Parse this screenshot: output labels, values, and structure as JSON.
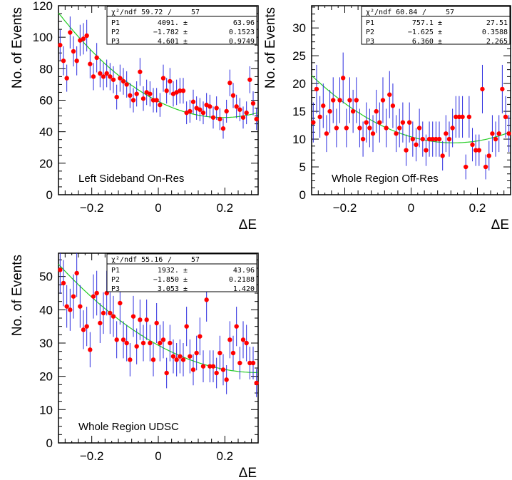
{
  "chart_data": [
    {
      "type": "scatter",
      "panel_label": "Left Sideband On-Res",
      "xlabel": "ΔE",
      "ylabel": "No. of Events",
      "xlim": [
        -0.3,
        0.3
      ],
      "ylim": [
        0,
        120
      ],
      "xticks": [
        -0.2,
        0,
        0.2
      ],
      "xtick_labels": [
        "−0.2",
        "0",
        "0.2"
      ],
      "yticks": [
        0,
        20,
        40,
        60,
        80,
        100,
        120
      ],
      "stats": {
        "chi2": "χ²/ndf 59.72",
        "sep": "/",
        "ndf": "57",
        "rows": [
          {
            "name": "P1",
            "value": "4091. ±",
            "error": "63.96"
          },
          {
            "name": "P2",
            "value": "−1.782 ±",
            "error": "0.1523"
          },
          {
            "name": "P3",
            "value": "4.601 ±",
            "error": "0.9749"
          }
        ]
      },
      "x": [
        -0.295,
        -0.285,
        -0.275,
        -0.265,
        -0.255,
        -0.245,
        -0.235,
        -0.225,
        -0.215,
        -0.205,
        -0.195,
        -0.185,
        -0.175,
        -0.165,
        -0.155,
        -0.145,
        -0.135,
        -0.125,
        -0.115,
        -0.105,
        -0.095,
        -0.085,
        -0.075,
        -0.065,
        -0.055,
        -0.045,
        -0.035,
        -0.025,
        -0.015,
        -0.005,
        0.005,
        0.015,
        0.025,
        0.035,
        0.045,
        0.055,
        0.065,
        0.075,
        0.085,
        0.095,
        0.105,
        0.115,
        0.125,
        0.135,
        0.145,
        0.155,
        0.165,
        0.175,
        0.185,
        0.195,
        0.205,
        0.215,
        0.225,
        0.235,
        0.245,
        0.255,
        0.265,
        0.275,
        0.285,
        0.295
      ],
      "values": [
        95,
        85,
        74,
        103,
        91,
        85,
        98,
        99,
        101,
        83,
        75,
        87,
        77,
        75,
        77,
        75,
        73,
        62,
        74,
        72,
        70,
        63,
        60,
        64,
        78,
        61,
        65,
        64,
        60,
        60,
        57,
        74,
        66,
        72,
        64,
        65,
        66,
        66,
        52,
        53,
        59,
        55,
        54,
        52,
        57,
        56,
        49,
        55,
        48,
        42,
        53,
        71,
        63,
        56,
        54,
        49,
        52,
        73,
        58,
        48
      ],
      "fit": {
        "p1": 4091,
        "p2": -1.782,
        "p3": 4.601
      }
    },
    {
      "type": "scatter",
      "panel_label": "Whole Region Off-Res",
      "xlabel": "ΔE",
      "ylabel": "No. of Events",
      "xlim": [
        -0.3,
        0.3
      ],
      "ylim": [
        0,
        34
      ],
      "xticks": [
        -0.2,
        0,
        0.2
      ],
      "xtick_labels": [
        "−0.2",
        "0",
        "0.2"
      ],
      "yticks": [
        0,
        5,
        10,
        15,
        20,
        25,
        30
      ],
      "stats": {
        "chi2": "χ²/ndf 60.84",
        "sep": "/",
        "ndf": "57",
        "rows": [
          {
            "name": "P1",
            "value": "757.1 ±",
            "error": "27.51"
          },
          {
            "name": "P2",
            "value": "−1.625 ±",
            "error": "0.3588"
          },
          {
            "name": "P3",
            "value": "6.360 ±",
            "error": "2.265"
          }
        ]
      },
      "x": [
        -0.295,
        -0.285,
        -0.275,
        -0.265,
        -0.255,
        -0.245,
        -0.235,
        -0.225,
        -0.215,
        -0.205,
        -0.195,
        -0.185,
        -0.175,
        -0.165,
        -0.155,
        -0.145,
        -0.135,
        -0.125,
        -0.115,
        -0.105,
        -0.095,
        -0.085,
        -0.075,
        -0.065,
        -0.055,
        -0.045,
        -0.035,
        -0.025,
        -0.015,
        -0.005,
        0.005,
        0.015,
        0.025,
        0.035,
        0.045,
        0.055,
        0.065,
        0.075,
        0.085,
        0.095,
        0.105,
        0.115,
        0.125,
        0.135,
        0.145,
        0.155,
        0.165,
        0.175,
        0.185,
        0.195,
        0.205,
        0.215,
        0.225,
        0.235,
        0.245,
        0.255,
        0.265,
        0.275,
        0.285,
        0.295
      ],
      "values": [
        13,
        19,
        14,
        16,
        11,
        15,
        17,
        12,
        17,
        21,
        12,
        17,
        15,
        17,
        12,
        10,
        13,
        12,
        11,
        15,
        13,
        17,
        12,
        18,
        16,
        11,
        12,
        13,
        8,
        13,
        10,
        9,
        12,
        10,
        8,
        10,
        10,
        10,
        10,
        7,
        11,
        10,
        12,
        14,
        14,
        14,
        5,
        14,
        9,
        8,
        8,
        19,
        5,
        7,
        11,
        10,
        11,
        19,
        14,
        11
      ],
      "fit": {
        "p1": 757.1,
        "p2": -1.625,
        "p3": 6.36
      }
    },
    {
      "type": "scatter",
      "panel_label": "Whole Region UDSC",
      "xlabel": "ΔE",
      "ylabel": "No. of Events",
      "xlim": [
        -0.3,
        0.3
      ],
      "ylim": [
        0,
        57
      ],
      "xticks": [
        -0.2,
        0,
        0.2
      ],
      "xtick_labels": [
        "−0.2",
        "0",
        "0.2"
      ],
      "yticks": [
        0,
        10,
        20,
        30,
        40,
        50
      ],
      "stats": {
        "chi2": "χ²/ndf 55.16",
        "sep": "/",
        "ndf": "57",
        "rows": [
          {
            "name": "P1",
            "value": "1932. ±",
            "error": "43.96"
          },
          {
            "name": "P2",
            "value": "−1.850 ±",
            "error": "0.2188"
          },
          {
            "name": "P3",
            "value": "3.053 ±",
            "error": "1.420"
          }
        ]
      },
      "x": [
        -0.295,
        -0.285,
        -0.275,
        -0.265,
        -0.255,
        -0.245,
        -0.235,
        -0.225,
        -0.215,
        -0.205,
        -0.195,
        -0.185,
        -0.175,
        -0.165,
        -0.155,
        -0.145,
        -0.135,
        -0.125,
        -0.115,
        -0.105,
        -0.095,
        -0.085,
        -0.075,
        -0.065,
        -0.055,
        -0.045,
        -0.035,
        -0.025,
        -0.015,
        -0.005,
        0.005,
        0.015,
        0.025,
        0.035,
        0.045,
        0.055,
        0.065,
        0.075,
        0.085,
        0.095,
        0.105,
        0.115,
        0.125,
        0.135,
        0.145,
        0.155,
        0.165,
        0.175,
        0.185,
        0.195,
        0.205,
        0.215,
        0.225,
        0.235,
        0.245,
        0.255,
        0.265,
        0.275,
        0.285,
        0.295
      ],
      "values": [
        52,
        48,
        41,
        40,
        44,
        51,
        41,
        34,
        35,
        28,
        44,
        45,
        36,
        39,
        45,
        39,
        38,
        31,
        42,
        31,
        30,
        25,
        38,
        29,
        37,
        30,
        37,
        30,
        25,
        36,
        30,
        31,
        21,
        30,
        26,
        25,
        26,
        25,
        35,
        26,
        22,
        27,
        32,
        23,
        43,
        23,
        23,
        21,
        27,
        22,
        19,
        31,
        27,
        35,
        24,
        31,
        30,
        24,
        24,
        18
      ],
      "fit": {
        "p1": 1932,
        "p2": -1.85,
        "p3": 3.053
      }
    }
  ]
}
